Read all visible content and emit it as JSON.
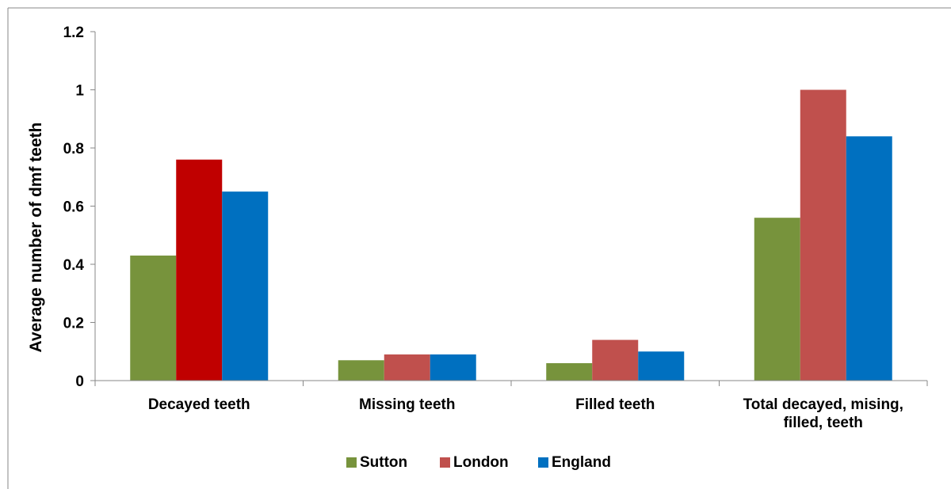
{
  "chart_data": {
    "type": "bar",
    "title": "",
    "xlabel": "",
    "ylabel": "Average number of dmf teeth",
    "ylim": [
      0,
      1.2
    ],
    "yticks": [
      "0",
      "0.2",
      "0.4",
      "0.6",
      "0.8",
      "1",
      "1.2"
    ],
    "categories": [
      [
        "Decayed teeth"
      ],
      [
        "Missing teeth"
      ],
      [
        "Filled teeth"
      ],
      [
        "Total decayed, mising,",
        "filled, teeth"
      ]
    ],
    "series": [
      {
        "name": "Sutton",
        "color": "#77933C",
        "values": [
          0.43,
          0.07,
          0.06,
          0.56
        ]
      },
      {
        "name": "London",
        "color": "#C0504D",
        "values": [
          0.76,
          0.09,
          0.14,
          1.0
        ]
      },
      {
        "name": "England",
        "color": "#0070C0",
        "values": [
          0.65,
          0.09,
          0.1,
          0.84
        ]
      }
    ],
    "highlight_colors": {
      "London-0": "#C00000"
    },
    "grid": false,
    "legend_position": "bottom"
  }
}
